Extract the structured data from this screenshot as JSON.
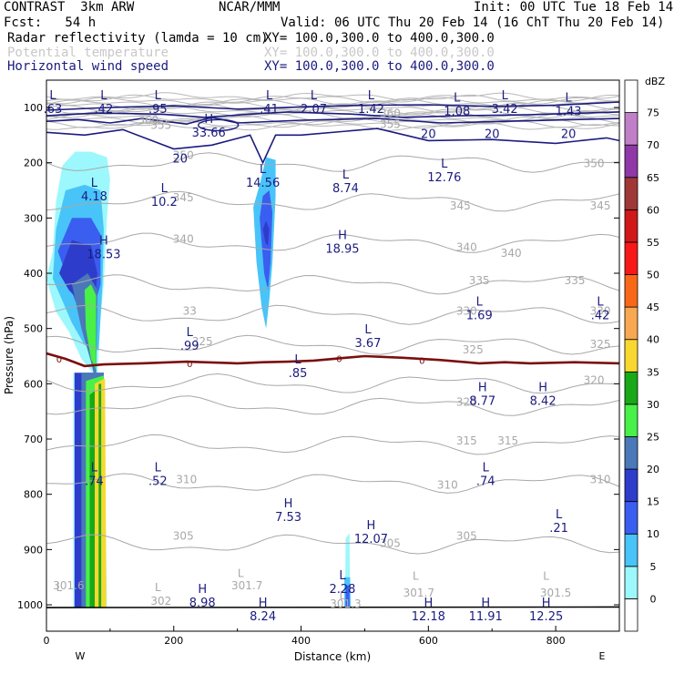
{
  "header": {
    "model": "CONTRAST  3km ARW",
    "org": "NCAR/MMM",
    "init": "Init: 00 UTC Tue 18 Feb 14",
    "fcst": "Fcst:   54 h",
    "valid": "Valid: 06 UTC Thu 20 Feb 14 (16 ChT Thu 20 Feb 14)",
    "field1": "Radar reflectivity (lamda = 10 cm)",
    "field1_xy": "XY= 100.0,300.0 to 400.0,300.0",
    "field2": "Potential temperature",
    "field2_xy": "XY= 100.0,300.0 to 400.0,300.0",
    "field3": "Horizontal wind speed",
    "field3_xy": "XY= 100.0,300.0 to 400.0,300.0"
  },
  "chart_data": {
    "type": "cross-section",
    "xlabel": "Distance (km)",
    "ylabel": "Pressure (hPa)",
    "xlim": [
      0,
      900
    ],
    "ylim": [
      1050,
      70
    ],
    "xticks": [
      0,
      200,
      400,
      600,
      800
    ],
    "yticks": [
      100,
      200,
      300,
      400,
      500,
      600,
      700,
      800,
      900,
      1000
    ],
    "x_ends": {
      "left": "W",
      "right": "E"
    },
    "colorbar": {
      "title": "dBZ",
      "levels": [
        0,
        5,
        10,
        15,
        20,
        25,
        30,
        35,
        40,
        45,
        50,
        55,
        60,
        65,
        70,
        75
      ],
      "colors": [
        "#ffffff",
        "#9cf8fc",
        "#48c4f8",
        "#3a5ef0",
        "#2e3ccc",
        "#4a78b8",
        "#48f048",
        "#18a818",
        "#f8d830",
        "#f8a850",
        "#f86818",
        "#f81818",
        "#d01818",
        "#a03838",
        "#9038a8",
        "#c080c8",
        "#ffffff"
      ]
    },
    "theta_labels": [
      {
        "x": 160,
        "p": 130,
        "text": "360"
      },
      {
        "x": 540,
        "p": 117,
        "text": "360"
      },
      {
        "x": 180,
        "p": 139,
        "text": "355"
      },
      {
        "x": 540,
        "p": 137,
        "text": "355"
      },
      {
        "x": 215,
        "p": 193,
        "text": "350"
      },
      {
        "x": 860,
        "p": 208,
        "text": "350"
      },
      {
        "x": 215,
        "p": 270,
        "text": "345"
      },
      {
        "x": 650,
        "p": 285,
        "text": "345"
      },
      {
        "x": 870,
        "p": 285,
        "text": "345"
      },
      {
        "x": 215,
        "p": 345,
        "text": "340"
      },
      {
        "x": 660,
        "p": 360,
        "text": "340"
      },
      {
        "x": 730,
        "p": 370,
        "text": "340"
      },
      {
        "x": 680,
        "p": 420,
        "text": "335"
      },
      {
        "x": 830,
        "p": 420,
        "text": "335"
      },
      {
        "x": 225,
        "p": 475,
        "text": "33"
      },
      {
        "x": 660,
        "p": 475,
        "text": "330"
      },
      {
        "x": 870,
        "p": 475,
        "text": "330"
      },
      {
        "x": 245,
        "p": 530,
        "text": "325"
      },
      {
        "x": 670,
        "p": 545,
        "text": "325"
      },
      {
        "x": 870,
        "p": 535,
        "text": "325"
      },
      {
        "x": 860,
        "p": 600,
        "text": "320"
      },
      {
        "x": 660,
        "p": 640,
        "text": "320"
      },
      {
        "x": 660,
        "p": 710,
        "text": "315"
      },
      {
        "x": 725,
        "p": 710,
        "text": "315"
      },
      {
        "x": 220,
        "p": 780,
        "text": "310"
      },
      {
        "x": 630,
        "p": 790,
        "text": "310"
      },
      {
        "x": 870,
        "p": 780,
        "text": "310"
      },
      {
        "x": 215,
        "p": 882,
        "text": "305"
      },
      {
        "x": 540,
        "p": 895,
        "text": "305"
      },
      {
        "x": 660,
        "p": 882,
        "text": "305"
      },
      {
        "x": 35,
        "p": 972,
        "text": "301.6"
      },
      {
        "x": 180,
        "p": 1000,
        "text": "302"
      },
      {
        "x": 315,
        "p": 972,
        "text": "301.7"
      },
      {
        "x": 470,
        "p": 1005,
        "text": "301.3"
      },
      {
        "x": 585,
        "p": 985,
        "text": "301.7"
      },
      {
        "x": 800,
        "p": 985,
        "text": "301.5"
      }
    ],
    "theta_extrema": [
      {
        "x": 20,
        "p": 975,
        "type": "L"
      },
      {
        "x": 175,
        "p": 975,
        "type": "L"
      },
      {
        "x": 305,
        "p": 950,
        "type": "L"
      },
      {
        "x": 465,
        "p": 990,
        "type": "L"
      },
      {
        "x": 580,
        "p": 955,
        "type": "L"
      },
      {
        "x": 785,
        "p": 955,
        "type": "L"
      }
    ],
    "wind_speed_labels": [
      {
        "x": 210,
        "p": 200,
        "text": "20"
      },
      {
        "x": 600,
        "p": 155,
        "text": "20"
      },
      {
        "x": 700,
        "p": 155,
        "text": "20"
      },
      {
        "x": 820,
        "p": 155,
        "text": "20"
      }
    ],
    "wind_extrema": [
      {
        "x": 10,
        "p": 92,
        "type": "L",
        "value": ".63"
      },
      {
        "x": 90,
        "p": 92,
        "type": "L",
        "value": ".42"
      },
      {
        "x": 175,
        "p": 92,
        "type": "L",
        "value": ".95"
      },
      {
        "x": 350,
        "p": 92,
        "type": "L",
        "value": ".41"
      },
      {
        "x": 420,
        "p": 92,
        "type": "L",
        "value": "2.07"
      },
      {
        "x": 510,
        "p": 92,
        "type": "L",
        "value": "1.42"
      },
      {
        "x": 645,
        "p": 96,
        "type": "L",
        "value": "1.08"
      },
      {
        "x": 720,
        "p": 92,
        "type": "L",
        "value": "3.42"
      },
      {
        "x": 820,
        "p": 96,
        "type": "L",
        "value": "1.43"
      },
      {
        "x": 255,
        "p": 135,
        "type": "H",
        "value": "33.66"
      },
      {
        "x": 75,
        "p": 250,
        "type": "L",
        "value": "4.18"
      },
      {
        "x": 185,
        "p": 260,
        "type": "L",
        "value": "10.2"
      },
      {
        "x": 340,
        "p": 225,
        "type": "L",
        "value": "14.56"
      },
      {
        "x": 470,
        "p": 235,
        "type": "L",
        "value": "8.74"
      },
      {
        "x": 625,
        "p": 215,
        "type": "L",
        "value": "12.76"
      },
      {
        "x": 90,
        "p": 355,
        "type": "H",
        "value": "18.53"
      },
      {
        "x": 465,
        "p": 345,
        "type": "H",
        "value": "18.95"
      },
      {
        "x": 225,
        "p": 520,
        "type": "L",
        "value": ".99"
      },
      {
        "x": 505,
        "p": 515,
        "type": "L",
        "value": "3.67"
      },
      {
        "x": 680,
        "p": 465,
        "type": "L",
        "value": "1.69"
      },
      {
        "x": 870,
        "p": 465,
        "type": "L",
        "value": ".42"
      },
      {
        "x": 395,
        "p": 570,
        "type": "L",
        "value": ".85"
      },
      {
        "x": 685,
        "p": 620,
        "type": "H",
        "value": "8.77"
      },
      {
        "x": 780,
        "p": 620,
        "type": "H",
        "value": "8.42"
      },
      {
        "x": 75,
        "p": 765,
        "type": "L",
        "value": ".74"
      },
      {
        "x": 175,
        "p": 765,
        "type": "L",
        "value": ".52"
      },
      {
        "x": 690,
        "p": 765,
        "type": "L",
        "value": ".74"
      },
      {
        "x": 380,
        "p": 830,
        "type": "H",
        "value": "7.53"
      },
      {
        "x": 510,
        "p": 870,
        "type": "H",
        "value": "12.07"
      },
      {
        "x": 805,
        "p": 850,
        "type": "L",
        "value": ".21"
      },
      {
        "x": 465,
        "p": 960,
        "type": "L",
        "value": "2.28"
      },
      {
        "x": 245,
        "p": 985,
        "type": "H",
        "value": "8.98"
      },
      {
        "x": 340,
        "p": 1010,
        "type": "H",
        "value": "8.24"
      },
      {
        "x": 600,
        "p": 1010,
        "type": "H",
        "value": "12.18"
      },
      {
        "x": 690,
        "p": 1010,
        "type": "H",
        "value": "11.91"
      },
      {
        "x": 785,
        "p": 1010,
        "type": "H",
        "value": "12.25"
      }
    ],
    "freezing_level": {
      "label": "0",
      "points": [
        [
          0,
          545
        ],
        [
          30,
          555
        ],
        [
          60,
          568
        ],
        [
          90,
          565
        ],
        [
          150,
          563
        ],
        [
          220,
          560
        ],
        [
          300,
          563
        ],
        [
          340,
          561
        ],
        [
          380,
          560
        ],
        [
          420,
          558
        ],
        [
          460,
          554
        ],
        [
          500,
          550
        ],
        [
          560,
          553
        ],
        [
          620,
          557
        ],
        [
          680,
          563
        ],
        [
          720,
          561
        ],
        [
          760,
          563
        ],
        [
          830,
          561
        ],
        [
          900,
          563
        ]
      ],
      "label_x": [
        20,
        225,
        460,
        590
      ]
    }
  }
}
